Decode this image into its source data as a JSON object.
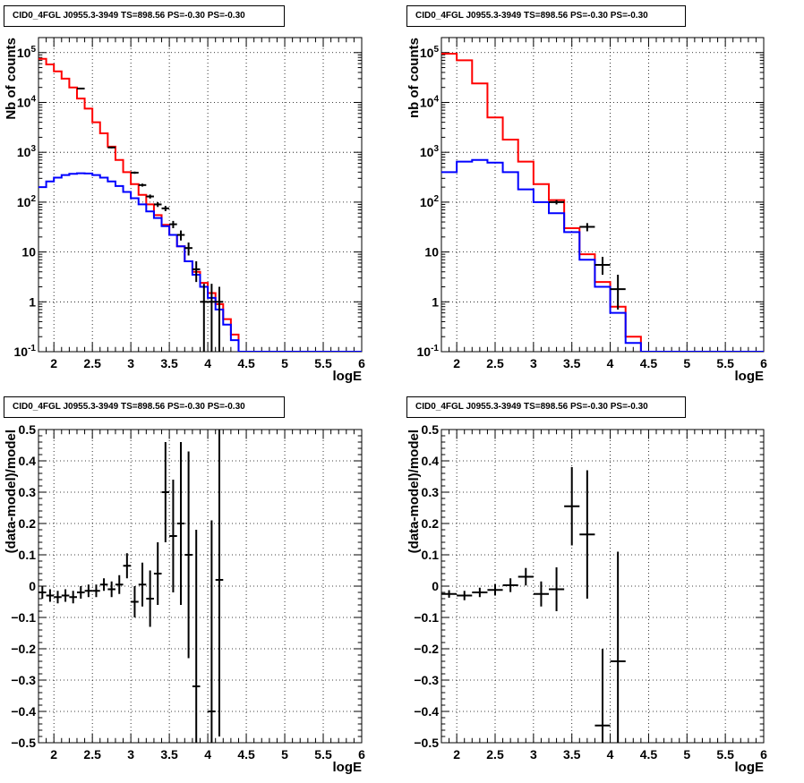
{
  "colors": {
    "model": "#ff0000",
    "secondary": "#0000ff",
    "data": "#000000",
    "grid": "#000000"
  },
  "chart_data": [
    {
      "type": "line",
      "title": "CID0_4FGL J0955.3-3949 TS=898.56 PS=-0.30 PS=-0.30",
      "xlabel": "logE",
      "ylabel": "Nb of counts",
      "xlim": [
        1.8,
        6.0
      ],
      "ylim": [
        0.1,
        200000
      ],
      "yscale": "log",
      "grid": true,
      "x_ticks": [
        "2",
        "2.5",
        "3",
        "3.5",
        "4",
        "4.5",
        "5",
        "5.5",
        "6"
      ],
      "y_ticks": [
        "10^{-1}",
        "1",
        "10",
        "10^{2}",
        "10^{3}",
        "10^{4}",
        "10^{5}"
      ],
      "bin_edges": [
        1.8,
        1.9,
        2.0,
        2.1,
        2.2,
        2.3,
        2.4,
        2.5,
        2.6,
        2.7,
        2.8,
        2.9,
        3.0,
        3.1,
        3.2,
        3.3,
        3.4,
        3.5,
        3.6,
        3.7,
        3.8,
        3.9,
        4.0,
        4.1,
        4.2,
        4.3,
        4.4,
        4.5,
        4.6,
        4.7,
        4.8,
        4.9,
        5.0,
        5.1,
        5.2,
        5.3,
        5.4,
        5.5,
        5.6,
        5.7,
        5.8,
        5.9,
        6.0
      ],
      "series": [
        {
          "role": "model-total",
          "color": "#ff0000",
          "values": [
            75000,
            58000,
            42000,
            30000,
            20000,
            12000,
            7500,
            4000,
            2400,
            1300,
            700,
            400,
            230,
            140,
            90,
            55,
            35,
            22,
            13,
            6.5,
            4.0,
            2.4,
            1.5,
            0.9,
            0.45,
            0.22,
            0.1,
            0.1,
            0.1,
            0.1,
            0.1,
            0.1,
            0.1,
            0.1,
            0.1,
            0.1,
            0.1,
            0.1,
            0.1,
            0.1,
            0.1,
            0.1
          ]
        },
        {
          "role": "model-source",
          "color": "#0000ff",
          "values": [
            200,
            260,
            310,
            350,
            370,
            380,
            375,
            350,
            310,
            260,
            210,
            160,
            120,
            90,
            65,
            48,
            33,
            22,
            13,
            6.5,
            3.5,
            2.0,
            1.2,
            0.7,
            0.35,
            0.17,
            0.1,
            0.1,
            0.1,
            0.1,
            0.1,
            0.1,
            0.1,
            0.1,
            0.1,
            0.1,
            0.1,
            0.1,
            0.1,
            0.1,
            0.1,
            0.1
          ]
        }
      ],
      "points": [
        {
          "x": 2.35,
          "y": 19000,
          "ylo": 18500,
          "yhi": 19500
        },
        {
          "x": 2.75,
          "y": 1250,
          "ylo": 1200,
          "yhi": 1300
        },
        {
          "x": 3.05,
          "y": 390,
          "ylo": 370,
          "yhi": 410
        },
        {
          "x": 3.15,
          "y": 220,
          "ylo": 205,
          "yhi": 235
        },
        {
          "x": 3.25,
          "y": 130,
          "ylo": 118,
          "yhi": 142
        },
        {
          "x": 3.35,
          "y": 90,
          "ylo": 80,
          "yhi": 100
        },
        {
          "x": 3.45,
          "y": 75,
          "ylo": 66,
          "yhi": 84
        },
        {
          "x": 3.55,
          "y": 36,
          "ylo": 30,
          "yhi": 42
        },
        {
          "x": 3.65,
          "y": 22,
          "ylo": 17,
          "yhi": 27
        },
        {
          "x": 3.75,
          "y": 12,
          "ylo": 8.5,
          "yhi": 15.5
        },
        {
          "x": 3.85,
          "y": 4.5,
          "ylo": 2.5,
          "yhi": 6.5
        },
        {
          "x": 3.95,
          "y": 1.0,
          "ylo": 0.1,
          "yhi": 2.3
        },
        {
          "x": 4.05,
          "y": 1.0,
          "ylo": 0.1,
          "yhi": 2.3
        },
        {
          "x": 4.15,
          "y": 1.0,
          "ylo": 0.1,
          "yhi": 2.0
        }
      ]
    },
    {
      "type": "line",
      "title": "CID0_4FGL J0955.3-3949 TS=898.56 PS=-0.30 PS=-0.30",
      "xlabel": "logE",
      "ylabel": "nb of counts",
      "xlim": [
        1.8,
        6.0
      ],
      "ylim": [
        0.1,
        200000
      ],
      "yscale": "log",
      "grid": true,
      "x_ticks": [
        "2",
        "2.5",
        "3",
        "3.5",
        "4",
        "4.5",
        "5",
        "5.5",
        "6"
      ],
      "y_ticks": [
        "10^{-1}",
        "1",
        "10",
        "10^{2}",
        "10^{3}",
        "10^{4}",
        "10^{5}"
      ],
      "bin_edges": [
        1.8,
        2.0,
        2.2,
        2.4,
        2.6,
        2.8,
        3.0,
        3.2,
        3.4,
        3.6,
        3.8,
        4.0,
        4.2,
        4.4,
        4.6,
        4.8,
        5.0,
        5.2,
        5.4,
        5.6,
        5.8,
        6.0
      ],
      "series": [
        {
          "role": "model-total",
          "color": "#ff0000",
          "values": [
            95000,
            70000,
            24000,
            5000,
            1800,
            650,
            230,
            110,
            30,
            9,
            2.5,
            0.8,
            0.2,
            0.1,
            0.1,
            0.1,
            0.1,
            0.1,
            0.1,
            0.1,
            0.1
          ]
        },
        {
          "role": "model-source",
          "color": "#0000ff",
          "values": [
            400,
            650,
            700,
            620,
            400,
            180,
            100,
            60,
            25,
            7,
            2.0,
            0.6,
            0.15,
            0.1,
            0.1,
            0.1,
            0.1,
            0.1,
            0.1,
            0.1,
            0.1
          ]
        }
      ],
      "points": [
        {
          "x": 3.3,
          "y": 100,
          "ylo": 90,
          "yhi": 110
        },
        {
          "x": 3.7,
          "y": 32,
          "ylo": 26,
          "yhi": 38
        },
        {
          "x": 3.9,
          "y": 5.5,
          "ylo": 3.5,
          "yhi": 8
        },
        {
          "x": 4.1,
          "y": 1.8,
          "ylo": 0.7,
          "yhi": 3.5
        }
      ]
    },
    {
      "type": "scatter",
      "title": "CID0_4FGL J0955.3-3949 TS=898.56 PS=-0.30 PS=-0.30",
      "xlabel": "logE",
      "ylabel": "(data-model)/model",
      "xlim": [
        1.8,
        6.0
      ],
      "ylim": [
        -0.5,
        0.5
      ],
      "grid": true,
      "x_ticks": [
        "2",
        "2.5",
        "3",
        "3.5",
        "4",
        "4.5",
        "5",
        "5.5",
        "6"
      ],
      "y_ticks": [
        "−0.5",
        "−0.4",
        "−0.3",
        "−0.2",
        "−0.1",
        "0",
        "0.1",
        "0.2",
        "0.3",
        "0.4",
        "0.5"
      ],
      "x_half_width": 0.05,
      "points": [
        {
          "x": 1.85,
          "y": -0.02,
          "err": 0.02
        },
        {
          "x": 1.95,
          "y": -0.03,
          "err": 0.02
        },
        {
          "x": 2.05,
          "y": -0.035,
          "err": 0.02
        },
        {
          "x": 2.15,
          "y": -0.03,
          "err": 0.02
        },
        {
          "x": 2.25,
          "y": -0.035,
          "err": 0.02
        },
        {
          "x": 2.35,
          "y": -0.02,
          "err": 0.02
        },
        {
          "x": 2.45,
          "y": -0.015,
          "err": 0.02
        },
        {
          "x": 2.55,
          "y": -0.015,
          "err": 0.02
        },
        {
          "x": 2.65,
          "y": 0.005,
          "err": 0.02
        },
        {
          "x": 2.75,
          "y": -0.01,
          "err": 0.025
        },
        {
          "x": 2.85,
          "y": 0.005,
          "err": 0.03
        },
        {
          "x": 2.95,
          "y": 0.065,
          "err": 0.04
        },
        {
          "x": 3.05,
          "y": -0.05,
          "err": 0.05
        },
        {
          "x": 3.15,
          "y": 0.005,
          "err": 0.07
        },
        {
          "x": 3.25,
          "y": -0.04,
          "err": 0.09
        },
        {
          "x": 3.35,
          "y": 0.04,
          "err": 0.1
        },
        {
          "x": 3.45,
          "y": 0.3,
          "err": 0.16
        },
        {
          "x": 3.55,
          "y": 0.16,
          "err": 0.18
        },
        {
          "x": 3.65,
          "y": 0.2,
          "err": 0.26
        },
        {
          "x": 3.75,
          "y": 0.1,
          "err": 0.33
        },
        {
          "x": 3.85,
          "y": -0.32,
          "err": 0.5
        },
        {
          "x": 4.05,
          "y": -0.4,
          "err": 0.61
        },
        {
          "x": 4.15,
          "y": 0.02,
          "err": 0.5
        }
      ]
    },
    {
      "type": "scatter",
      "title": "CID0_4FGL J0955.3-3949 TS=898.56 PS=-0.30 PS=-0.30",
      "xlabel": "logE",
      "ylabel": "(data-model)/model",
      "xlim": [
        1.8,
        6.0
      ],
      "ylim": [
        -0.5,
        0.5
      ],
      "grid": true,
      "x_ticks": [
        "2",
        "2.5",
        "3",
        "3.5",
        "4",
        "4.5",
        "5",
        "5.5",
        "6"
      ],
      "y_ticks": [
        "−0.5",
        "−0.4",
        "−0.3",
        "−0.2",
        "−0.1",
        "0",
        "0.1",
        "0.2",
        "0.3",
        "0.4",
        "0.5"
      ],
      "x_half_width": 0.1,
      "points": [
        {
          "x": 1.9,
          "y": -0.025,
          "err": 0.012
        },
        {
          "x": 2.1,
          "y": -0.03,
          "err": 0.015
        },
        {
          "x": 2.3,
          "y": -0.02,
          "err": 0.015
        },
        {
          "x": 2.5,
          "y": -0.012,
          "err": 0.018
        },
        {
          "x": 2.7,
          "y": 0.003,
          "err": 0.022
        },
        {
          "x": 2.9,
          "y": 0.03,
          "err": 0.028
        },
        {
          "x": 3.1,
          "y": -0.025,
          "err": 0.04
        },
        {
          "x": 3.3,
          "y": -0.01,
          "err": 0.07
        },
        {
          "x": 3.5,
          "y": 0.255,
          "err": 0.125
        },
        {
          "x": 3.7,
          "y": 0.165,
          "err": 0.205
        },
        {
          "x": 3.9,
          "y": -0.445,
          "err": 0.245
        },
        {
          "x": 4.1,
          "y": -0.24,
          "err": 0.35
        }
      ]
    }
  ]
}
